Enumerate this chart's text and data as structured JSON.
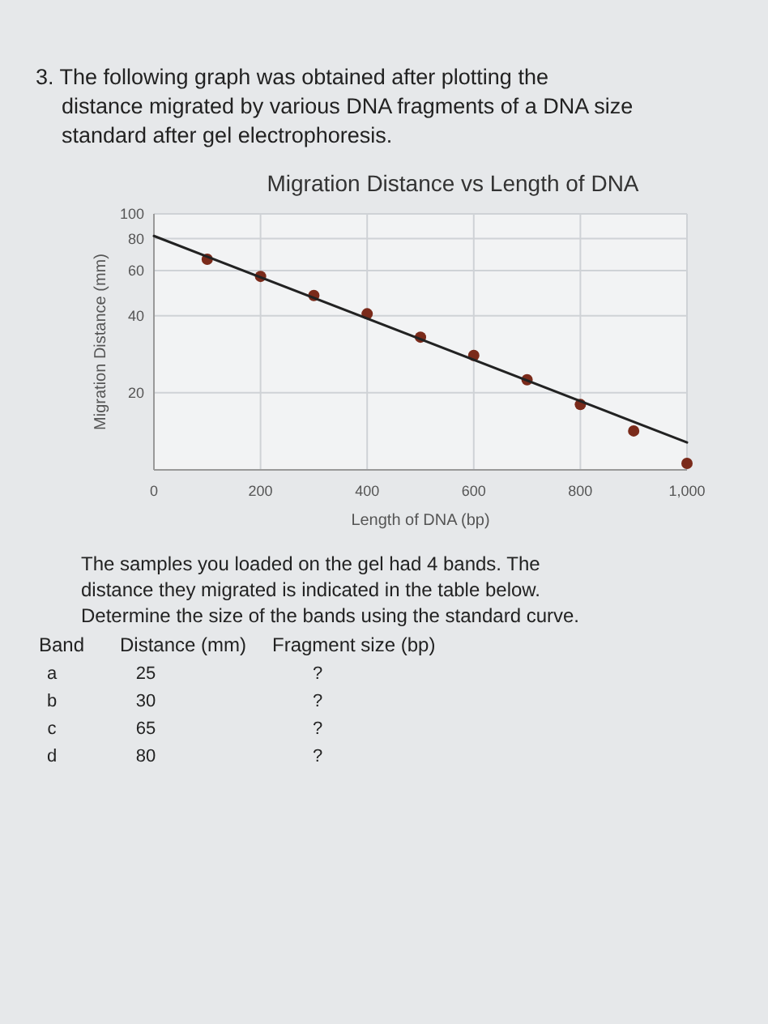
{
  "chart_data": {
    "type": "scatter",
    "title": "Migration Distance vs Length of DNA",
    "xlabel": "Length of DNA (bp)",
    "ylabel": "Migration Distance (mm)",
    "log": "y",
    "grid": true,
    "xlim": [
      0,
      1000
    ],
    "xticks": [
      0,
      200,
      400,
      600,
      800,
      {
        "value": 1000,
        "label": "1,000"
      }
    ],
    "ylim": [
      10,
      100
    ],
    "yticks": [
      20,
      40,
      60,
      80,
      100
    ],
    "series": [
      {
        "color": "#7a2a1a",
        "marker": "circle",
        "x": [
          100,
          200,
          300,
          400,
          500,
          600,
          700,
          800,
          900,
          1000
        ],
        "values": [
          66.5,
          57,
          48,
          40.7,
          33,
          28,
          22.5,
          18,
          14.2,
          10.6
        ]
      },
      {
        "type": "line",
        "marker": "none",
        "color": "#222222",
        "x": [
          0,
          1000
        ],
        "values": [
          82,
          12.8
        ]
      }
    ],
    "annotations": [
      "3. The following graph was obtained after plotting the distance migrated by various DNA fragments of a DNA size standard after gel electrophoresis.",
      "The samples you loaded on the gel had 4 bands. The distance they migrated is indicated in the table below. Determine the size of the bands using the standard curve.",
      "Band",
      "Distance (mm)",
      "Fragment size (bp)",
      "a",
      "25",
      "?",
      "b",
      "30",
      "?",
      "c",
      "65",
      "?",
      "d",
      "80",
      "?"
    ]
  }
}
